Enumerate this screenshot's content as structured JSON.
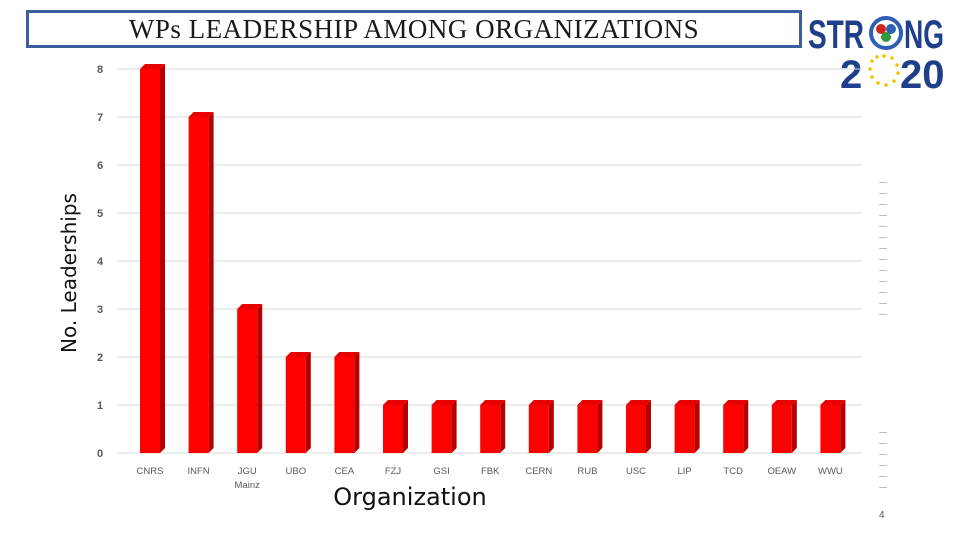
{
  "slide": {
    "title": "WPs LEADERSHIP AMONG ORGANIZATIONS",
    "page_number": "4"
  },
  "logo": {
    "line1_left": "STR",
    "line1_right": "NG",
    "line2_left": "2",
    "line2_right": "20",
    "colors": {
      "text": "#1f3f8a",
      "ring_red": "#d0251f",
      "ring_blue": "#2d5fb4",
      "ring_green": "#2e9b3f",
      "stars": "#f2c200"
    }
  },
  "chart_data": {
    "type": "bar",
    "title": "",
    "xlabel": "Organization",
    "ylabel": "No. Leaderships",
    "ylim": [
      0,
      8
    ],
    "yticks": [
      0,
      1,
      2,
      3,
      4,
      5,
      6,
      7,
      8
    ],
    "grid": true,
    "categories": [
      "CNRS",
      "INFN",
      "JGU Mainz",
      "UBO",
      "CEA",
      "FZJ",
      "GSI",
      "FBK",
      "CERN",
      "RUB",
      "USC",
      "LIP",
      "TCD",
      "OEAW",
      "WWU"
    ],
    "category_lines": [
      [
        "CNRS"
      ],
      [
        "INFN"
      ],
      [
        "JGU",
        "Mainz"
      ],
      [
        "UBO"
      ],
      [
        "CEA"
      ],
      [
        "FZJ"
      ],
      [
        "GSI"
      ],
      [
        "FBK"
      ],
      [
        "CERN"
      ],
      [
        "RUB"
      ],
      [
        "USC"
      ],
      [
        "LIP"
      ],
      [
        "TCD"
      ],
      [
        "OEAW"
      ],
      [
        "WWU"
      ]
    ],
    "values": [
      8,
      7,
      3,
      2,
      2,
      1,
      1,
      1,
      1,
      1,
      1,
      1,
      1,
      1,
      1
    ],
    "colors": {
      "bar": "#ff0000",
      "bar_side": "#b30000",
      "bar_top": "#e60000",
      "grid": "#d9d9d9",
      "tick_text": "#595959"
    }
  }
}
